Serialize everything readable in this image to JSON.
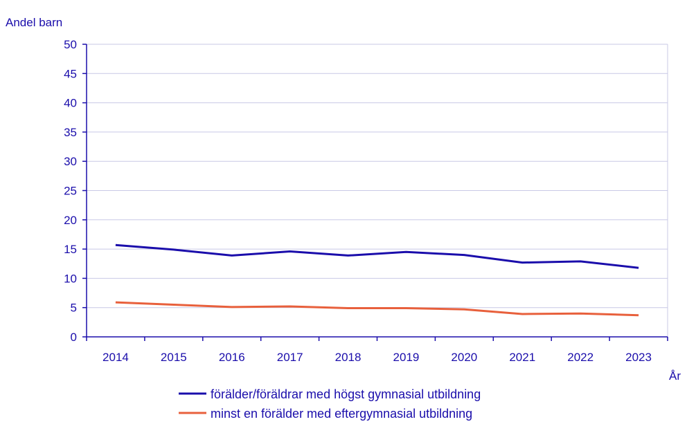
{
  "chart_data": {
    "type": "line",
    "ylabel": "Andel barn",
    "xlabel": "År",
    "categories": [
      "2014",
      "2015",
      "2016",
      "2017",
      "2018",
      "2019",
      "2020",
      "2021",
      "2022",
      "2023"
    ],
    "ylim": [
      0,
      50
    ],
    "yticks": [
      "0",
      "5",
      "10",
      "15",
      "20",
      "25",
      "30",
      "35",
      "40",
      "45",
      "50"
    ],
    "grid": true,
    "legend_position": "bottom",
    "series": [
      {
        "name": "förälder/föräldrar med högst gymnasial utbildning",
        "color": "#1a0dab",
        "values": [
          15.7,
          14.9,
          13.9,
          14.6,
          13.9,
          14.5,
          14.0,
          12.7,
          12.9,
          11.8
        ]
      },
      {
        "name": "minst en förälder med eftergymnasial utbildning",
        "color": "#e8603c",
        "values": [
          5.9,
          5.5,
          5.1,
          5.2,
          4.9,
          4.9,
          4.7,
          3.9,
          4.0,
          3.7
        ]
      }
    ]
  }
}
